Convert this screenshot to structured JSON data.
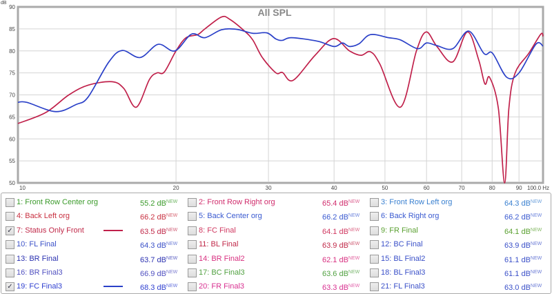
{
  "chart_data": {
    "type": "line",
    "title": "All SPL",
    "ylabel": "dB",
    "xlabel": "Hz",
    "xscale": "log",
    "xlim": [
      10,
      100
    ],
    "ylim": [
      50,
      90
    ],
    "grid": true,
    "xticks": [
      10,
      20,
      30,
      40,
      50,
      60,
      70,
      80,
      90,
      100
    ],
    "xtick_labels": [
      "10",
      "20",
      "30",
      "40",
      "50",
      "60",
      "70",
      "80",
      "90",
      "100.0 Hz"
    ],
    "yticks": [
      50,
      55,
      60,
      65,
      70,
      75,
      80,
      85,
      90
    ],
    "series": [
      {
        "name": "7: Status Only Front",
        "color": "#c0204a",
        "x": [
          10,
          11.3,
          12.5,
          13.6,
          15.1,
          15.9,
          16.8,
          17.8,
          18.4,
          19,
          20,
          20.9,
          22,
          22.7,
          24.4,
          25.3,
          26.9,
          28,
          29.2,
          31,
          31.9,
          33.4,
          36.8,
          39.9,
          42.8,
          45,
          46.9,
          48.9,
          53.5,
          57.4,
          59.9,
          62.8,
          67.3,
          71.8,
          75.4,
          77.5,
          79.1,
          82.2,
          84.5,
          86.1,
          88.5,
          94,
          99,
          100
        ],
        "y": [
          63.5,
          66,
          70,
          72.2,
          73,
          71.5,
          67.2,
          73.5,
          75,
          75.2,
          80,
          83,
          83.7,
          85,
          87.7,
          87.2,
          84.7,
          82.5,
          78.5,
          75,
          75.1,
          73.3,
          79,
          82.8,
          80,
          79,
          79.8,
          77,
          67.2,
          80,
          84.3,
          81,
          77.5,
          84.3,
          78,
          72.5,
          74,
          67,
          50,
          67,
          75,
          79.5,
          83.8,
          83.3
        ]
      },
      {
        "name": "19: FC Final3",
        "color": "#2a40c8",
        "x": [
          10,
          10.4,
          11.8,
          12.9,
          13.6,
          14.9,
          15.8,
          17.1,
          18.5,
          19.9,
          21.4,
          22.7,
          24.4,
          26.1,
          28,
          29.8,
          31,
          31.9,
          33.2,
          37.2,
          40,
          41.5,
          42.8,
          44.6,
          46.9,
          50.8,
          53.5,
          57.7,
          60,
          62.8,
          67.3,
          72.2,
          77.2,
          80.1,
          85.3,
          90,
          96.9,
          100
        ],
        "y": [
          68.3,
          68.3,
          66.2,
          67.8,
          69.5,
          77.5,
          80.1,
          78.5,
          81.5,
          80,
          83.8,
          83,
          84.8,
          84.9,
          84,
          84.1,
          82.7,
          82.4,
          83,
          82.2,
          81,
          81.8,
          81,
          81.6,
          83.7,
          83,
          82.5,
          80.5,
          81.8,
          81.2,
          80.5,
          84.5,
          79.4,
          79.5,
          74,
          75,
          81.5,
          81.1
        ]
      }
    ]
  },
  "legend": {
    "new_tag": "NEW",
    "items": [
      {
        "label": "1: Front Row Center org",
        "value": "55.2 dB",
        "color": "#3a9a2a",
        "checked": false
      },
      {
        "label": "2: Front Row Right org",
        "value": "65.4 dB",
        "color": "#d02c6c",
        "checked": false
      },
      {
        "label": "3: Front Row Left org",
        "value": "64.3 dB",
        "color": "#3a80d0",
        "checked": false
      },
      {
        "label": "4: Back Left org",
        "value": "66.2 dB",
        "color": "#c83040",
        "checked": false
      },
      {
        "label": "5: Back Center org",
        "value": "66.2 dB",
        "color": "#3a5ad0",
        "checked": false
      },
      {
        "label": "6: Back Right org",
        "value": "66.2 dB",
        "color": "#3a5ad0",
        "checked": false
      },
      {
        "label": "7: Status Only Front",
        "value": "63.5 dB",
        "color": "#c02848",
        "checked": true,
        "line": "#c0204a"
      },
      {
        "label": "8: FC Final",
        "value": "64.1 dB",
        "color": "#d03860",
        "checked": false
      },
      {
        "label": "9: FR Final",
        "value": "64.1 dB",
        "color": "#5aa030",
        "checked": false
      },
      {
        "label": "10: FL Final",
        "value": "64.3 dB",
        "color": "#3a50c8",
        "checked": false
      },
      {
        "label": "11: BL Final",
        "value": "63.9 dB",
        "color": "#c02848",
        "checked": false
      },
      {
        "label": "12: BC Final",
        "value": "63.9 dB",
        "color": "#3a50c8",
        "checked": false
      },
      {
        "label": "13: BR Final",
        "value": "63.7 dB",
        "color": "#2a30b0",
        "checked": false
      },
      {
        "label": "14: BR Final2",
        "value": "62.1 dB",
        "color": "#d83080",
        "checked": false
      },
      {
        "label": "15: BL Final2",
        "value": "61.1 dB",
        "color": "#3a50c8",
        "checked": false
      },
      {
        "label": "16: BR Final3",
        "value": "66.9 dB",
        "color": "#5050c0",
        "checked": false
      },
      {
        "label": "17: BC Final3",
        "value": "63.6 dB",
        "color": "#50a040",
        "checked": false
      },
      {
        "label": "18: BL Final3",
        "value": "61.1 dB",
        "color": "#3a50c8",
        "checked": false
      },
      {
        "label": "19: FC Final3",
        "value": "68.3 dB",
        "color": "#3040d0",
        "checked": true,
        "line": "#2a40c8"
      },
      {
        "label": "20: FR Final3",
        "value": "63.3 dB",
        "color": "#d83090",
        "checked": false
      },
      {
        "label": "21: FL Final3",
        "value": "63.0 dB",
        "color": "#3a50c8",
        "checked": false
      }
    ]
  }
}
